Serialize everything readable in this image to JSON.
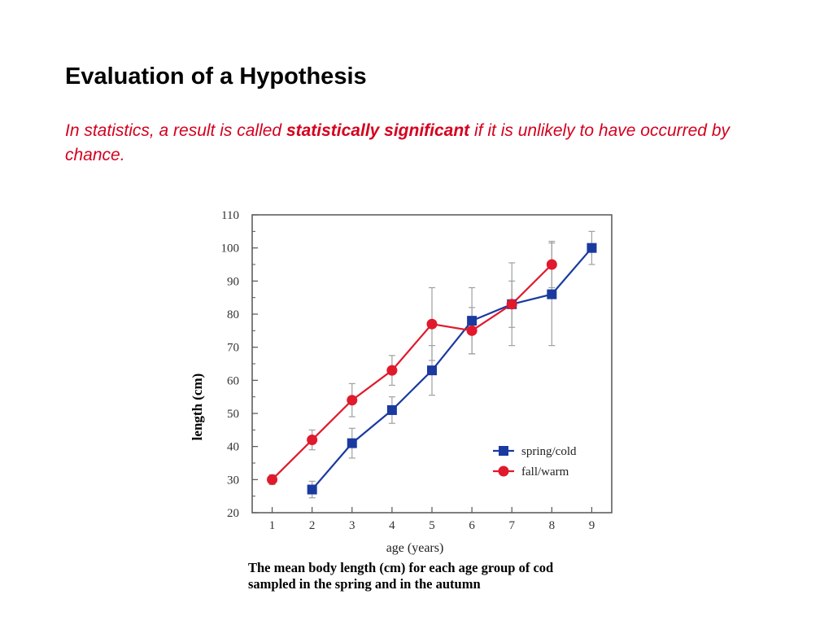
{
  "slide": {
    "title": "Evaluation of a Hypothesis",
    "definition_prefix": "In statistics, a result is called ",
    "definition_term": "statistically significant",
    "definition_suffix": " if it is unlikely to have occurred by chance."
  },
  "colors": {
    "title": "#000000",
    "definition_text": "#d4001e",
    "spring_series": "#1a3aa0",
    "fall_series": "#e01a2c",
    "error_bars": "#a0a0a0"
  },
  "chart_data": {
    "type": "line",
    "title": "",
    "xlabel": "age (years)",
    "ylabel": "length (cm)",
    "caption_line1": "The mean body length (cm) for each age group of cod",
    "caption_line2": "sampled in the spring and in the autumn",
    "xlim": [
      0.5,
      9.5
    ],
    "ylim": [
      20,
      110
    ],
    "x_ticks": [
      1,
      2,
      3,
      4,
      5,
      6,
      7,
      8,
      9
    ],
    "y_ticks": [
      20,
      30,
      40,
      50,
      60,
      70,
      80,
      90,
      100,
      110
    ],
    "grid": false,
    "legend_position": "bottom-right",
    "series": [
      {
        "name": "spring/cold",
        "marker": "square",
        "color": "#1a3aa0",
        "x": [
          2,
          3,
          4,
          5,
          6,
          7,
          8,
          9
        ],
        "y": [
          27,
          41,
          51,
          63,
          78,
          83,
          86,
          100
        ],
        "error": [
          2.5,
          4.5,
          4,
          7.5,
          10,
          12.5,
          15.5,
          5
        ]
      },
      {
        "name": "fall/warm",
        "marker": "circle",
        "color": "#e01a2c",
        "x": [
          1,
          2,
          3,
          4,
          5,
          6,
          7,
          8
        ],
        "y": [
          30,
          42,
          54,
          63,
          77,
          75,
          83,
          95
        ],
        "error": [
          1.5,
          3,
          5,
          4.5,
          11,
          7,
          7,
          7
        ]
      }
    ]
  }
}
